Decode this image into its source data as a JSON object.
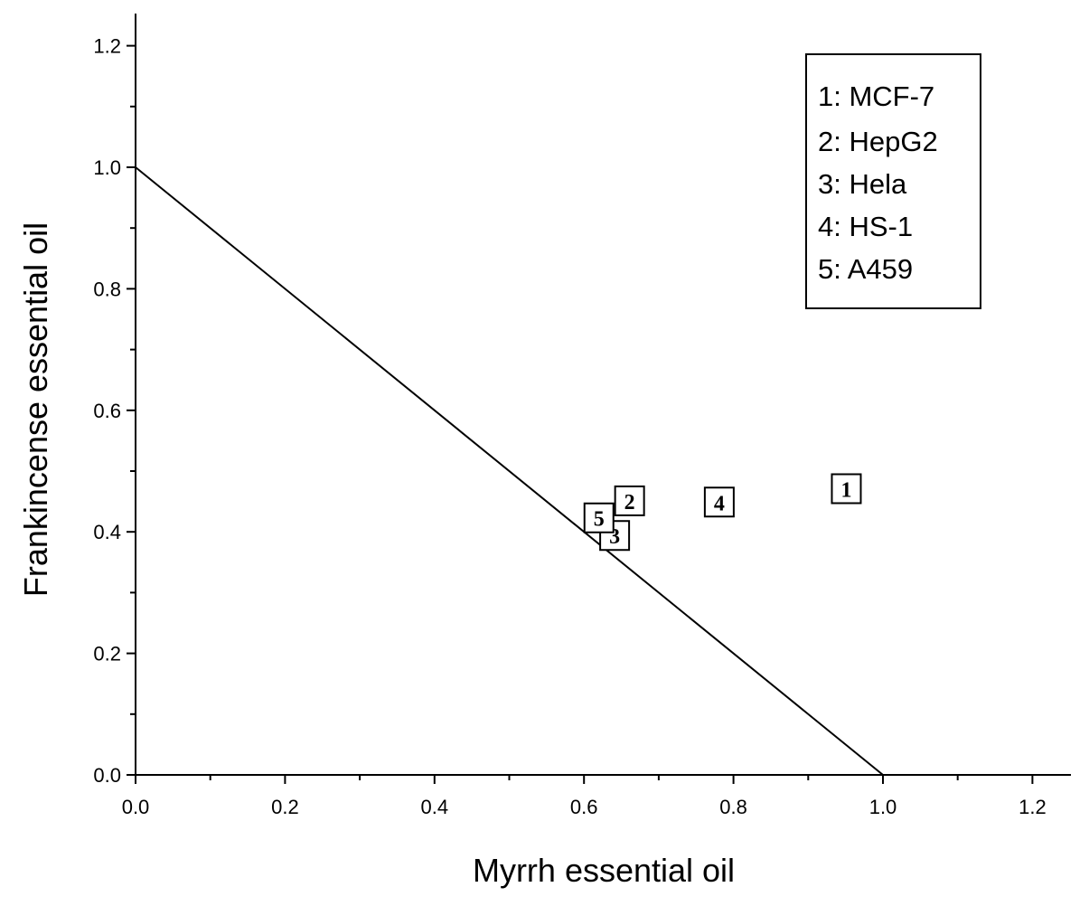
{
  "chart_data": {
    "type": "scatter",
    "title": "",
    "xlabel": "Myrrh essential oil",
    "ylabel": "Frankincense essential oil",
    "xlim": [
      0,
      1.25
    ],
    "ylim": [
      0,
      1.25
    ],
    "xticks": [
      "0.0",
      "0.2",
      "0.4",
      "0.6",
      "0.8",
      "1.0",
      "1.2"
    ],
    "yticks": [
      "0.0",
      "0.2",
      "0.4",
      "0.6",
      "0.8",
      "1.0",
      "1.2"
    ],
    "line": {
      "x": [
        0,
        1.0
      ],
      "y": [
        1.0,
        0
      ]
    },
    "points": [
      {
        "label": "1",
        "x": 0.951,
        "y": 0.471
      },
      {
        "label": "2",
        "x": 0.661,
        "y": 0.451
      },
      {
        "label": "3",
        "x": 0.641,
        "y": 0.394
      },
      {
        "label": "4",
        "x": 0.781,
        "y": 0.449
      },
      {
        "label": "5",
        "x": 0.62,
        "y": 0.423
      }
    ],
    "legend": [
      "1: MCF-7",
      "2: HepG2",
      "3: Hela",
      "4: HS-1",
      "5: A459"
    ],
    "legend_position": "top-right"
  }
}
